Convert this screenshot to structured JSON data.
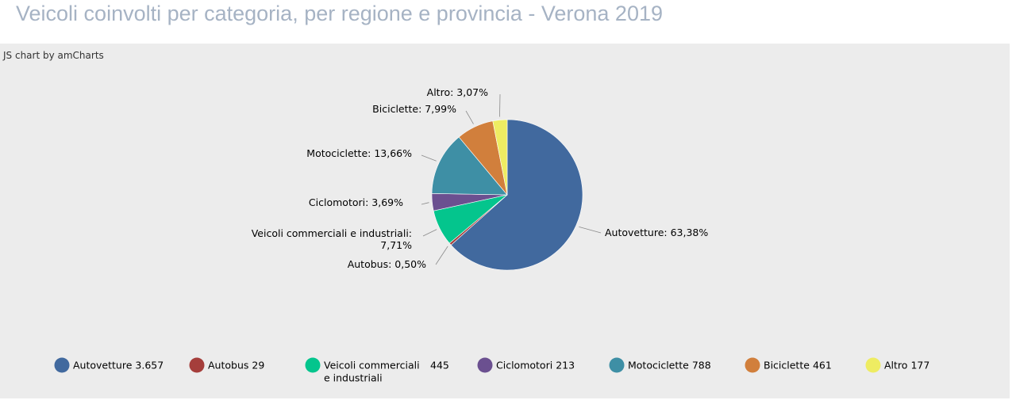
{
  "page": {
    "title": "Veicoli coinvolti per categoria, per regione e provincia - Verona 2019",
    "credit": "JS chart by amCharts"
  },
  "colors": {
    "title": "#a6b3c4",
    "panel_background": "#ececec"
  },
  "chart_data": {
    "type": "pie",
    "title": "",
    "slices": [
      {
        "name": "Autovetture",
        "value": 3657,
        "value_label": "3.657",
        "percent_label": "63,38%",
        "color": "#41699e"
      },
      {
        "name": "Autobus",
        "value": 29,
        "value_label": "29",
        "percent_label": "0,50%",
        "color": "#a53e3b"
      },
      {
        "name": "Veicoli commerciali e industriali",
        "value": 445,
        "value_label": "445",
        "percent_label": "7,71%",
        "color": "#04c58d"
      },
      {
        "name": "Ciclomotori",
        "value": 213,
        "value_label": "213",
        "percent_label": "3,69%",
        "color": "#6b5090"
      },
      {
        "name": "Motociclette",
        "value": 788,
        "value_label": "788",
        "percent_label": "13,66%",
        "color": "#3e8fa5"
      },
      {
        "name": "Biciclette",
        "value": 461,
        "value_label": "461",
        "percent_label": "7,99%",
        "color": "#d17f3c"
      },
      {
        "name": "Altro",
        "value": 177,
        "value_label": "177",
        "percent_label": "3,07%",
        "color": "#eeec62"
      }
    ],
    "legend": {
      "position": "bottom",
      "items": [
        {
          "label": "Autovetture",
          "value": "3.657"
        },
        {
          "label": "Autobus",
          "value": "29"
        },
        {
          "label": "Veicoli commerciali e industriali",
          "value": "445"
        },
        {
          "label": "Ciclomotori",
          "value": "213"
        },
        {
          "label": "Motociclette",
          "value": "788"
        },
        {
          "label": "Biciclette",
          "value": "461"
        },
        {
          "label": "Altro",
          "value": "177"
        }
      ]
    },
    "slice_labels": [
      "Autovetture: 63,38%",
      "Autobus: 0,50%",
      "Veicoli commerciali e industriali: 7,71%",
      "Ciclomotori: 3,69%",
      "Motociclette: 13,66%",
      "Biciclette: 7,99%",
      "Altro: 3,07%"
    ]
  }
}
